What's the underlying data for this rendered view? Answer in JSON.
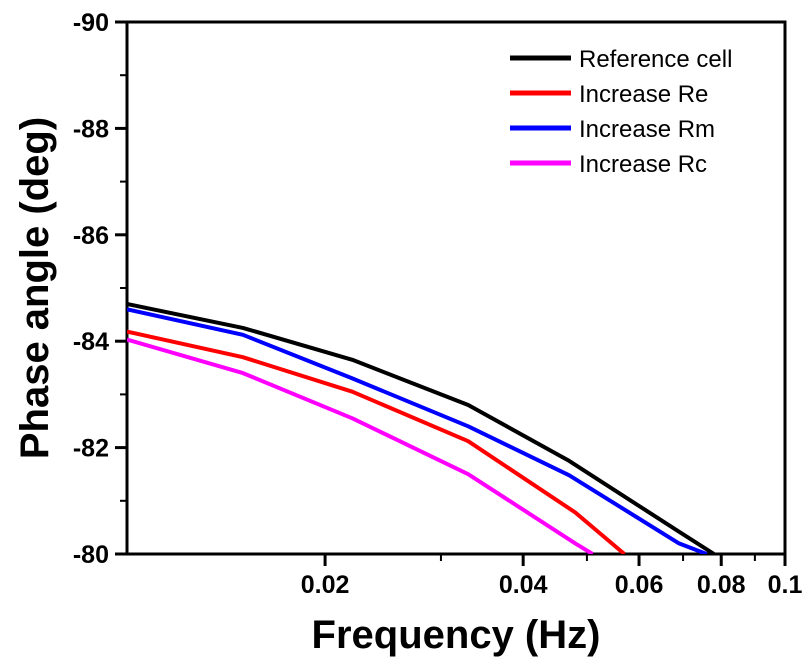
{
  "chart_data": {
    "type": "line",
    "xlabel": "Frequency (Hz)",
    "ylabel": "Phase angle (deg)",
    "xscale": "log",
    "xlim": [
      0.01,
      0.1
    ],
    "ylim": [
      -80,
      -90
    ],
    "y_axis_inverted": true,
    "x_ticks": [
      {
        "value": 0.02,
        "label": "0.02"
      },
      {
        "value": 0.04,
        "label": "0.04"
      },
      {
        "value": 0.06,
        "label": "0.06"
      },
      {
        "value": 0.08,
        "label": "0.08"
      },
      {
        "value": 0.1,
        "label": "0.1"
      }
    ],
    "y_ticks": [
      {
        "value": -80,
        "label": "-80"
      },
      {
        "value": -82,
        "label": "-82"
      },
      {
        "value": -84,
        "label": "-84"
      },
      {
        "value": -86,
        "label": "-86"
      },
      {
        "value": -88,
        "label": "-88"
      },
      {
        "value": -90,
        "label": "-90"
      }
    ],
    "grid": false,
    "legend_position": "top-right",
    "series": [
      {
        "name": "Reference cell",
        "color": "#000000",
        "x": [
          0.01,
          0.015,
          0.022,
          0.033,
          0.047,
          0.069,
          0.078
        ],
        "y": [
          -84.7,
          -84.25,
          -83.65,
          -82.8,
          -81.75,
          -80.42,
          -80.0
        ]
      },
      {
        "name": "Increase Re",
        "color": "#ff0000",
        "x": [
          0.01,
          0.015,
          0.022,
          0.033,
          0.048,
          0.057
        ],
        "y": [
          -84.18,
          -83.7,
          -83.05,
          -82.12,
          -80.78,
          -80.0
        ]
      },
      {
        "name": "Increase Rm",
        "color": "#0000ff",
        "x": [
          0.01,
          0.015,
          0.022,
          0.033,
          0.047,
          0.069,
          0.076
        ],
        "y": [
          -84.6,
          -84.12,
          -83.3,
          -82.4,
          -81.48,
          -80.2,
          -80.0
        ]
      },
      {
        "name": "Increase Rc",
        "color": "#ff00ff",
        "x": [
          0.01,
          0.015,
          0.022,
          0.033,
          0.048,
          0.051
        ],
        "y": [
          -84.03,
          -83.4,
          -82.55,
          -81.5,
          -80.2,
          -80.0
        ]
      }
    ]
  }
}
